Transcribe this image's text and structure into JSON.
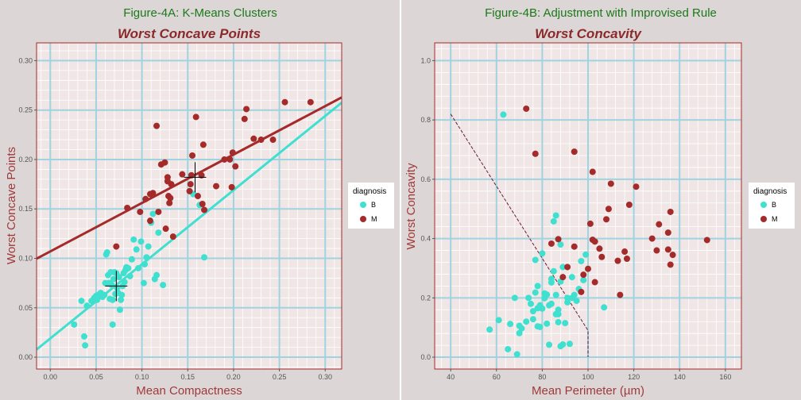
{
  "chart_data": [
    {
      "type": "scatter",
      "figure_title": "Figure-4A: K-Means Clusters",
      "title": "Worst Concave Points",
      "xlabel": "Mean Compactness",
      "ylabel": "Worst Concave Points",
      "xlim": [
        -0.015,
        0.318
      ],
      "ylim": [
        -0.012,
        0.318
      ],
      "x_ticks": [
        0.0,
        0.05,
        0.1,
        0.15,
        0.2,
        0.25,
        0.3
      ],
      "x_tick_labels": [
        "0.00",
        "0.05",
        "0.10",
        "0.15",
        "0.20",
        "0.25",
        "0.30"
      ],
      "y_ticks": [
        0.0,
        0.05,
        0.1,
        0.15,
        0.2,
        0.25,
        0.3
      ],
      "y_tick_labels": [
        "0.00",
        "0.05",
        "0.10",
        "0.15",
        "0.20",
        "0.25",
        "0.30"
      ],
      "legend": {
        "title": "diagnosis",
        "entries": [
          "B",
          "M"
        ],
        "placement": "right"
      },
      "colors": {
        "B": "#40e0d0",
        "M": "#a52a2a"
      },
      "series": [
        {
          "name": "B",
          "points": [
            [
              0.026,
              0.033
            ],
            [
              0.034,
              0.057
            ],
            [
              0.037,
              0.021
            ],
            [
              0.038,
              0.012
            ],
            [
              0.04,
              0.052
            ],
            [
              0.045,
              0.057
            ],
            [
              0.048,
              0.06
            ],
            [
              0.05,
              0.062
            ],
            [
              0.051,
              0.058
            ],
            [
              0.052,
              0.063
            ],
            [
              0.053,
              0.061
            ],
            [
              0.055,
              0.065
            ],
            [
              0.057,
              0.061
            ],
            [
              0.059,
              0.063
            ],
            [
              0.06,
              0.075
            ],
            [
              0.061,
              0.104
            ],
            [
              0.062,
              0.106
            ],
            [
              0.063,
              0.083
            ],
            [
              0.064,
              0.075
            ],
            [
              0.065,
              0.059
            ],
            [
              0.066,
              0.086
            ],
            [
              0.067,
              0.073
            ],
            [
              0.068,
              0.058
            ],
            [
              0.069,
              0.079
            ],
            [
              0.07,
              0.086
            ],
            [
              0.071,
              0.064
            ],
            [
              0.072,
              0.085
            ],
            [
              0.073,
              0.07
            ],
            [
              0.074,
              0.065
            ],
            [
              0.075,
              0.081
            ],
            [
              0.076,
              0.048
            ],
            [
              0.077,
              0.058
            ],
            [
              0.078,
              0.063
            ],
            [
              0.079,
              0.072
            ],
            [
              0.08,
              0.085
            ],
            [
              0.081,
              0.076
            ],
            [
              0.082,
              0.088
            ],
            [
              0.083,
              0.091
            ],
            [
              0.085,
              0.09
            ],
            [
              0.087,
              0.082
            ],
            [
              0.089,
              0.099
            ],
            [
              0.091,
              0.119
            ],
            [
              0.094,
              0.109
            ],
            [
              0.096,
              0.09
            ],
            [
              0.099,
              0.117
            ],
            [
              0.102,
              0.075
            ],
            [
              0.103,
              0.094
            ],
            [
              0.105,
              0.101
            ],
            [
              0.107,
              0.112
            ],
            [
              0.11,
              0.136
            ],
            [
              0.112,
              0.145
            ],
            [
              0.114,
              0.079
            ],
            [
              0.116,
              0.083
            ],
            [
              0.118,
              0.126
            ],
            [
              0.123,
              0.073
            ],
            [
              0.156,
              0.165
            ],
            [
              0.163,
              0.154
            ],
            [
              0.168,
              0.101
            ],
            [
              0.068,
              0.033
            ]
          ]
        },
        {
          "name": "M",
          "points": [
            [
              0.072,
              0.112
            ],
            [
              0.084,
              0.151
            ],
            [
              0.098,
              0.147
            ],
            [
              0.104,
              0.16
            ],
            [
              0.109,
              0.138
            ],
            [
              0.112,
              0.166
            ],
            [
              0.116,
              0.234
            ],
            [
              0.118,
              0.147
            ],
            [
              0.121,
              0.195
            ],
            [
              0.125,
              0.197
            ],
            [
              0.126,
              0.13
            ],
            [
              0.128,
              0.182
            ],
            [
              0.128,
              0.178
            ],
            [
              0.129,
              0.163
            ],
            [
              0.13,
              0.156
            ],
            [
              0.131,
              0.161
            ],
            [
              0.132,
              0.175
            ],
            [
              0.134,
              0.122
            ],
            [
              0.144,
              0.185
            ],
            [
              0.152,
              0.168
            ],
            [
              0.153,
              0.175
            ],
            [
              0.154,
              0.184
            ],
            [
              0.155,
              0.204
            ],
            [
              0.159,
              0.243
            ],
            [
              0.161,
              0.163
            ],
            [
              0.165,
              0.184
            ],
            [
              0.166,
              0.155
            ],
            [
              0.167,
              0.215
            ],
            [
              0.168,
              0.149
            ],
            [
              0.181,
              0.173
            ],
            [
              0.19,
              0.2
            ],
            [
              0.196,
              0.2
            ],
            [
              0.198,
              0.172
            ],
            [
              0.199,
              0.207
            ],
            [
              0.202,
              0.193
            ],
            [
              0.212,
              0.241
            ],
            [
              0.214,
              0.251
            ],
            [
              0.222,
              0.221
            ],
            [
              0.23,
              0.22
            ],
            [
              0.243,
              0.22
            ],
            [
              0.256,
              0.258
            ],
            [
              0.284,
              0.258
            ],
            [
              0.109,
              0.165
            ]
          ]
        }
      ],
      "fit_lines": [
        {
          "name": "B",
          "intercept": 0.019,
          "slope": 0.75
        },
        {
          "name": "M",
          "intercept": 0.107,
          "slope": 0.49
        }
      ],
      "centroids": [
        {
          "name": "B",
          "x": 0.072,
          "y": 0.072
        },
        {
          "name": "M",
          "x": 0.158,
          "y": 0.182
        }
      ],
      "grid": true
    },
    {
      "type": "scatter",
      "figure_title": "Figure-4B: Adjustment with Improvised Rule",
      "title": "Worst Concavity",
      "xlabel": "Mean Perimeter (µm)",
      "ylabel": "Worst Concavity",
      "xlim": [
        33,
        167
      ],
      "ylim": [
        -0.04,
        1.06
      ],
      "x_ticks": [
        40,
        60,
        80,
        100,
        120,
        140,
        160
      ],
      "x_tick_labels": [
        "40",
        "60",
        "80",
        "100",
        "120",
        "140",
        "160"
      ],
      "y_ticks": [
        0.0,
        0.2,
        0.4,
        0.6,
        0.8,
        1.0
      ],
      "y_tick_labels": [
        "0.0",
        "0.2",
        "0.4",
        "0.6",
        "0.8",
        "1.0"
      ],
      "legend": {
        "title": "diagnosis",
        "entries": [
          "B",
          "M"
        ],
        "placement": "right"
      },
      "colors": {
        "B": "#40e0d0",
        "M": "#a52a2a"
      },
      "series": [
        {
          "name": "B",
          "points": [
            [
              57,
              0.093
            ],
            [
              61,
              0.125
            ],
            [
              63,
              0.818
            ],
            [
              65,
              0.027
            ],
            [
              66,
              0.112
            ],
            [
              68,
              0.2
            ],
            [
              69,
              0.01
            ],
            [
              70,
              0.081
            ],
            [
              70,
              0.106
            ],
            [
              71,
              0.097
            ],
            [
              73,
              0.12
            ],
            [
              74,
              0.2
            ],
            [
              75,
              0.18
            ],
            [
              76,
              0.155
            ],
            [
              76,
              0.128
            ],
            [
              77,
              0.218
            ],
            [
              77,
              0.328
            ],
            [
              78,
              0.165
            ],
            [
              78,
              0.24
            ],
            [
              78,
              0.104
            ],
            [
              79,
              0.102
            ],
            [
              79,
              0.175
            ],
            [
              80,
              0.35
            ],
            [
              80,
              0.164
            ],
            [
              81,
              0.199
            ],
            [
              81,
              0.215
            ],
            [
              82,
              0.211
            ],
            [
              82,
              0.113
            ],
            [
              83,
              0.175
            ],
            [
              83,
              0.042
            ],
            [
              84,
              0.252
            ],
            [
              84,
              0.18
            ],
            [
              84,
              0.264
            ],
            [
              85,
              0.458
            ],
            [
              85,
              0.29
            ],
            [
              86,
              0.478
            ],
            [
              86,
              0.21
            ],
            [
              86,
              0.145
            ],
            [
              87,
              0.118
            ],
            [
              87,
              0.16
            ],
            [
              87,
              0.145
            ],
            [
              88,
              0.38
            ],
            [
              88,
              0.255
            ],
            [
              88,
              0.037
            ],
            [
              89,
              0.304
            ],
            [
              89,
              0.043
            ],
            [
              90,
              0.115
            ],
            [
              91,
              0.2
            ],
            [
              91,
              0.185
            ],
            [
              92,
              0.045
            ],
            [
              93,
              0.2
            ],
            [
              93,
              0.27
            ],
            [
              94,
              0.21
            ],
            [
              95,
              0.19
            ],
            [
              96,
              0.23
            ],
            [
              97,
              0.324
            ],
            [
              98,
              0.26
            ],
            [
              99,
              0.346
            ],
            [
              107,
              0.168
            ]
          ]
        },
        {
          "name": "M",
          "points": [
            [
              73,
              0.838
            ],
            [
              77,
              0.686
            ],
            [
              84,
              0.383
            ],
            [
              87,
              0.398
            ],
            [
              89,
              0.27
            ],
            [
              91,
              0.304
            ],
            [
              94,
              0.693
            ],
            [
              94,
              0.373
            ],
            [
              97,
              0.22
            ],
            [
              98,
              0.278
            ],
            [
              100,
              0.298
            ],
            [
              101,
              0.45
            ],
            [
              102,
              0.625
            ],
            [
              102,
              0.396
            ],
            [
              103,
              0.39
            ],
            [
              103,
              0.253
            ],
            [
              105,
              0.366
            ],
            [
              106,
              0.338
            ],
            [
              108,
              0.465
            ],
            [
              109,
              0.5
            ],
            [
              110,
              0.585
            ],
            [
              113,
              0.325
            ],
            [
              114,
              0.21
            ],
            [
              116,
              0.356
            ],
            [
              117,
              0.332
            ],
            [
              118,
              0.514
            ],
            [
              121,
              0.575
            ],
            [
              128,
              0.4
            ],
            [
              130,
              0.36
            ],
            [
              131,
              0.448
            ],
            [
              135,
              0.42
            ],
            [
              135,
              0.363
            ],
            [
              136,
              0.49
            ],
            [
              136,
              0.312
            ],
            [
              137,
              0.345
            ],
            [
              152,
              0.395
            ]
          ]
        }
      ],
      "rule_line": [
        [
          40,
          0.82
        ],
        [
          100,
          0.09
        ],
        [
          100,
          0.0
        ]
      ],
      "grid": true
    }
  ]
}
